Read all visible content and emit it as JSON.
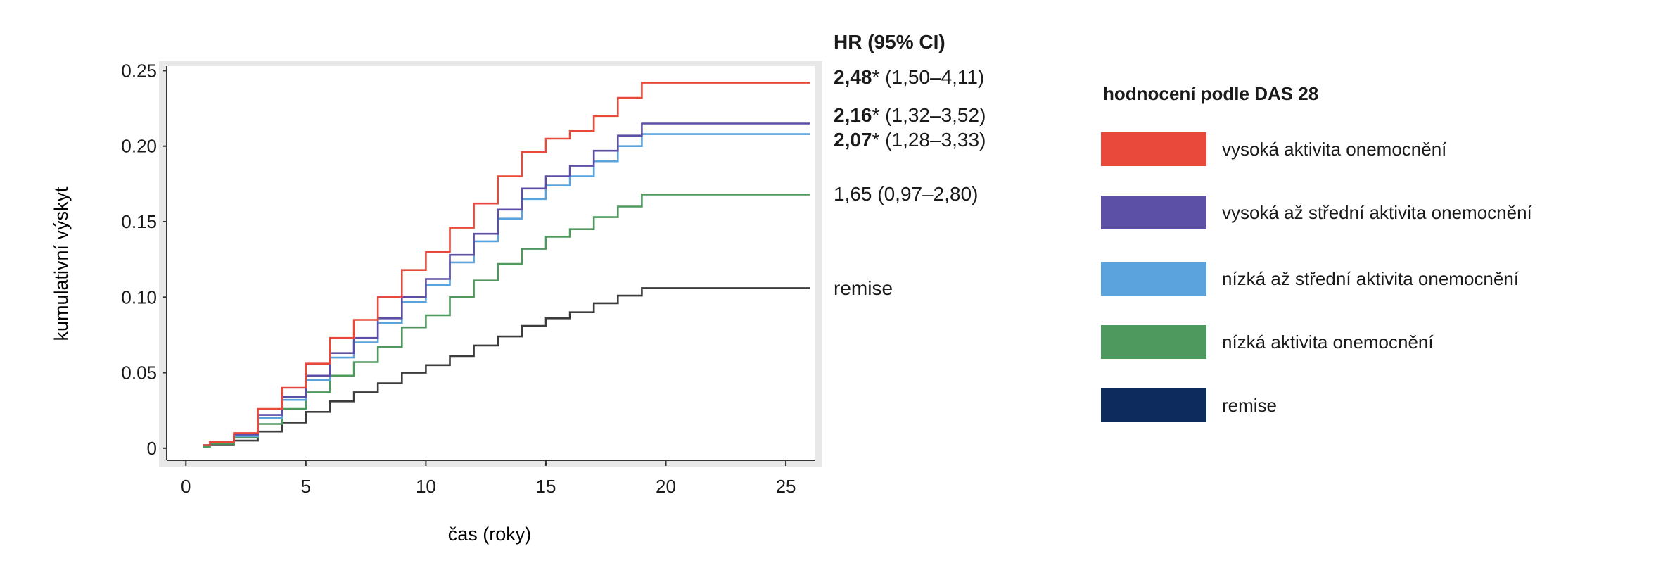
{
  "chart_data": {
    "type": "line",
    "step": true,
    "title": "",
    "xlabel": "čas (roky)",
    "ylabel": "kumulativní výskyt",
    "xlim": [
      -0.8,
      26.2
    ],
    "ylim": [
      -0.008,
      0.253
    ],
    "xticks": [
      0,
      5,
      10,
      15,
      20,
      25
    ],
    "xtick_labels": [
      "0",
      "5",
      "10",
      "15",
      "20",
      "25"
    ],
    "yticks": [
      0,
      0.05,
      0.1,
      0.15,
      0.2,
      0.25
    ],
    "ytick_labels": [
      "0",
      "0.05",
      "0.10",
      "0.15",
      "0.20",
      "0.25"
    ],
    "grid": false,
    "legend_position": "right",
    "legend_title": "hodnocení podle DAS 28",
    "hr_header": "HR (95% CI)",
    "series": [
      {
        "name": "vysoká aktivita onemocnění",
        "color": "#e8493a",
        "hr_bold": "2,48",
        "hr_rest": "* (1,50–4,11)",
        "x": [
          0.7,
          1,
          2,
          3,
          4,
          5,
          6,
          7,
          8,
          9,
          10,
          11,
          12,
          13,
          14,
          15,
          16,
          17,
          18,
          19,
          19.5,
          26
        ],
        "y": [
          0.002,
          0.004,
          0.01,
          0.026,
          0.04,
          0.056,
          0.073,
          0.085,
          0.1,
          0.118,
          0.13,
          0.146,
          0.162,
          0.18,
          0.196,
          0.205,
          0.21,
          0.22,
          0.232,
          0.242,
          0.242,
          0.242
        ]
      },
      {
        "name": "vysoká až střední  aktivita onemocnění",
        "color": "#5b4fa6",
        "hr_bold": "2,16",
        "hr_rest": "* (1,32–3,52)",
        "x": [
          0.7,
          1,
          2,
          3,
          4,
          5,
          6,
          7,
          8,
          9,
          10,
          11,
          12,
          13,
          14,
          15,
          16,
          17,
          18,
          19,
          19.5,
          26
        ],
        "y": [
          0.002,
          0.004,
          0.009,
          0.022,
          0.034,
          0.048,
          0.063,
          0.073,
          0.086,
          0.1,
          0.112,
          0.128,
          0.142,
          0.158,
          0.172,
          0.18,
          0.187,
          0.197,
          0.207,
          0.215,
          0.215,
          0.215
        ]
      },
      {
        "name": "nízká až střední  aktivita onemocnění",
        "color": "#5aa3dd",
        "hr_bold": "2,07",
        "hr_rest": "* (1,28–3,33)",
        "x": [
          0.7,
          1,
          2,
          3,
          4,
          5,
          6,
          7,
          8,
          9,
          10,
          11,
          12,
          13,
          14,
          15,
          16,
          17,
          18,
          19,
          19.5,
          26
        ],
        "y": [
          0.002,
          0.004,
          0.008,
          0.02,
          0.032,
          0.045,
          0.06,
          0.07,
          0.083,
          0.097,
          0.108,
          0.123,
          0.137,
          0.152,
          0.165,
          0.174,
          0.18,
          0.19,
          0.2,
          0.208,
          0.208,
          0.208
        ]
      },
      {
        "name": "nízká aktivita onemocnění",
        "color": "#4e9a5e",
        "hr_bold": "",
        "hr_rest": "1,65 (0,97–2,80)",
        "x": [
          0.7,
          1,
          2,
          3,
          4,
          5,
          6,
          7,
          8,
          9,
          10,
          11,
          12,
          13,
          14,
          15,
          16,
          17,
          18,
          19,
          19.5,
          26
        ],
        "y": [
          0.001,
          0.003,
          0.007,
          0.016,
          0.026,
          0.037,
          0.048,
          0.057,
          0.067,
          0.08,
          0.088,
          0.1,
          0.111,
          0.122,
          0.132,
          0.14,
          0.145,
          0.153,
          0.16,
          0.168,
          0.168,
          0.168
        ]
      },
      {
        "name": "remise",
        "color": "#3c3c3c",
        "legend_color": "#0d2b5c",
        "hr_bold": "",
        "hr_rest": "remise",
        "x": [
          0.7,
          1,
          2,
          3,
          4,
          5,
          6,
          7,
          8,
          9,
          10,
          11,
          12,
          13,
          14,
          15,
          16,
          17,
          18,
          19,
          19.5,
          26
        ],
        "y": [
          0.001,
          0.002,
          0.005,
          0.011,
          0.017,
          0.024,
          0.031,
          0.037,
          0.043,
          0.05,
          0.055,
          0.061,
          0.068,
          0.074,
          0.081,
          0.086,
          0.09,
          0.096,
          0.101,
          0.106,
          0.106,
          0.106
        ]
      }
    ]
  }
}
